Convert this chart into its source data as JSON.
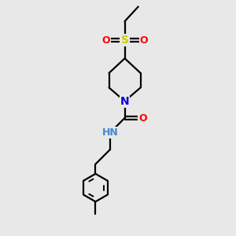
{
  "bg_color": "#e8e8e8",
  "atom_colors": {
    "C": "#000000",
    "N": "#0000dd",
    "O": "#ff0000",
    "S": "#cccc00",
    "H": "#4444ff",
    "NH": "#4488cc"
  },
  "bond_color": "#000000",
  "bond_width": 1.6,
  "figsize": [
    3.0,
    3.0
  ],
  "dpi": 100,
  "xlim": [
    -1.8,
    2.2
  ],
  "ylim": [
    -5.8,
    4.5
  ]
}
